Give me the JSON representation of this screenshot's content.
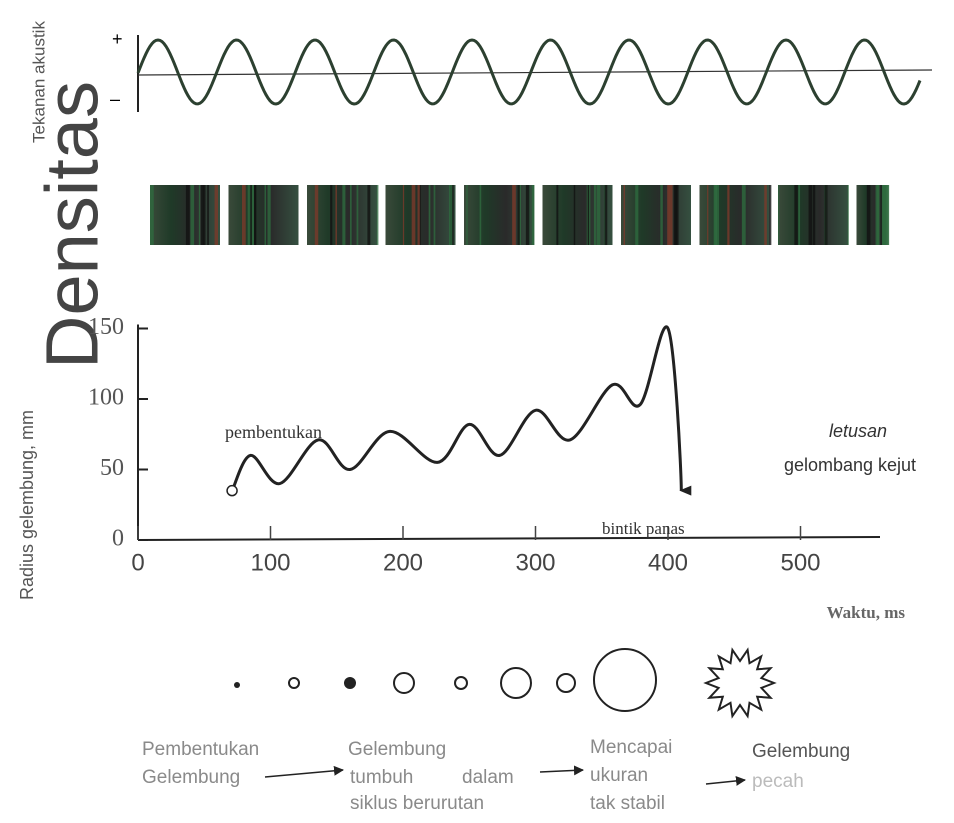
{
  "top_panel": {
    "ylabel": "Tekanan akustik",
    "plus": "+",
    "minus": "–"
  },
  "density_label": "Densitas",
  "chart_data": {
    "type": "line",
    "xlabel": "Waktu, ms",
    "ylabel": "Radius gelembung, mm",
    "x": [
      71,
      85,
      107,
      136,
      160,
      190,
      226,
      250,
      273,
      300,
      326,
      358,
      379,
      400,
      410
    ],
    "values": [
      35,
      60,
      40,
      71,
      50,
      77,
      55,
      82,
      60,
      92,
      71,
      110,
      96,
      150,
      35
    ],
    "color": "#222",
    "xlim": [
      0,
      560
    ],
    "ylim": [
      0,
      150
    ],
    "xticks": [
      0,
      100,
      200,
      300,
      400,
      500
    ],
    "yticks": [
      0,
      50,
      100,
      150
    ],
    "annotations": [
      "pembentukan",
      "bintik panas",
      "letusan",
      "gelombang kejut"
    ]
  },
  "stages": [
    {
      "lines": [
        "Pembentukan",
        "Gelembung"
      ]
    },
    {
      "lines": [
        "Gelembung",
        "tumbuh",
        "dalam",
        "siklus berurutan"
      ]
    },
    {
      "lines": [
        "Mencapai",
        "ukuran",
        "tak stabil"
      ]
    },
    {
      "lines": [
        "Gelembung",
        "pecah"
      ]
    }
  ]
}
